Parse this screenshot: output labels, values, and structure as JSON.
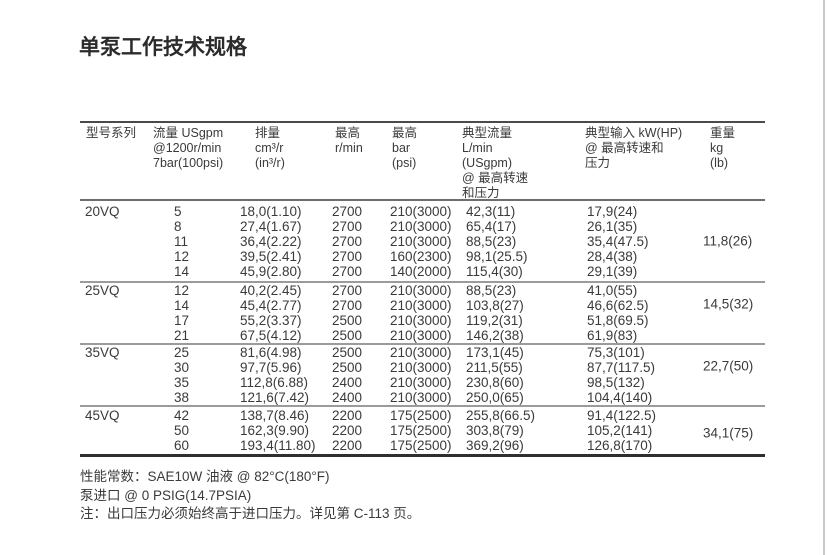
{
  "page": {
    "title": "单泵工作技术规格"
  },
  "colors": {
    "text": "#3a3a3a",
    "rule_dark": "#4a4a4a",
    "rule_light": "#9b9b9b",
    "page_edge": "#c9c9c9"
  },
  "table": {
    "headers": {
      "col1": "型号系列",
      "col2": [
        "流量 USgpm",
        "@1200r/min",
        "7bar(100psi)"
      ],
      "col3": [
        "排量",
        "cm³/r",
        "(in³/r)"
      ],
      "col4": [
        "最高",
        "r/min"
      ],
      "col5": [
        "最高",
        "bar",
        "(psi)"
      ],
      "col6": [
        "典型流量",
        "L/min",
        "(USgpm)",
        "@ 最高转速",
        "和压力"
      ],
      "col7": [
        "典型输入 kW(HP)",
        "@ 最高转速和",
        "压力"
      ],
      "col8": [
        "重量",
        "kg",
        "(lb)"
      ]
    },
    "groups": [
      {
        "series": "20VQ",
        "weight": "11,8(26)",
        "rows": [
          [
            "5",
            "18,0(1.10)",
            "2700",
            "210(3000)",
            "42,3(11)",
            "17,9(24)"
          ],
          [
            "8",
            "27,4(1.67)",
            "2700",
            "210(3000)",
            "65,4(17)",
            "26,1(35)"
          ],
          [
            "11",
            "36,4(2.22)",
            "2700",
            "210(3000)",
            "88,5(23)",
            "35,4(47.5)"
          ],
          [
            "12",
            "39,5(2.41)",
            "2700",
            "160(2300)",
            "98,1(25.5)",
            "28,4(38)"
          ],
          [
            "14",
            "45,9(2.80)",
            "2700",
            "140(2000)",
            "115,4(30)",
            "29,1(39)"
          ]
        ]
      },
      {
        "series": "25VQ",
        "weight": "14,5(32)",
        "rows": [
          [
            "12",
            "40,2(2.45)",
            "2700",
            "210(3000)",
            "88,5(23)",
            "41,0(55)"
          ],
          [
            "14",
            "45,4(2.77)",
            "2700",
            "210(3000)",
            "103,8(27)",
            "46,6(62.5)"
          ],
          [
            "17",
            "55,2(3.37)",
            "2500",
            "210(3000)",
            "119,2(31)",
            "51,8(69.5)"
          ],
          [
            "21",
            "67,5(4.12)",
            "2500",
            "210(3000)",
            "146,2(38)",
            "61,9(83)"
          ]
        ]
      },
      {
        "series": "35VQ",
        "weight": "22,7(50)",
        "rows": [
          [
            "25",
            "81,6(4.98)",
            "2500",
            "210(3000)",
            "173,1(45)",
            "75,3(101)"
          ],
          [
            "30",
            "97,7(5.96)",
            "2500",
            "210(3000)",
            "211,5(55)",
            "87,7(117.5)"
          ],
          [
            "35",
            "112,8(6.88)",
            "2400",
            "210(3000)",
            "230,8(60)",
            "98,5(132)"
          ],
          [
            "38",
            "121,6(7.42)",
            "2400",
            "210(3000)",
            "250,0(65)",
            "104,4(140)"
          ]
        ]
      },
      {
        "series": "45VQ",
        "weight": "34,1(75)",
        "rows": [
          [
            "42",
            "138,7(8.46)",
            "2200",
            "175(2500)",
            "255,8(66.5)",
            "91,4(122.5)"
          ],
          [
            "50",
            "162,3(9.90)",
            "2200",
            "175(2500)",
            "303,8(79)",
            "105,2(141)"
          ],
          [
            "60",
            "193,4(11.80)",
            "2200",
            "175(2500)",
            "369,2(96)",
            "126,8(170)"
          ]
        ]
      }
    ]
  },
  "notes": [
    "性能常数：SAE10W 油液 @ 82°C(180°F)",
    "泵进口 @ 0 PSIG(14.7PSIA)",
    "注：出口压力必须始终高于进口压力。详见第 C-113 页。"
  ]
}
